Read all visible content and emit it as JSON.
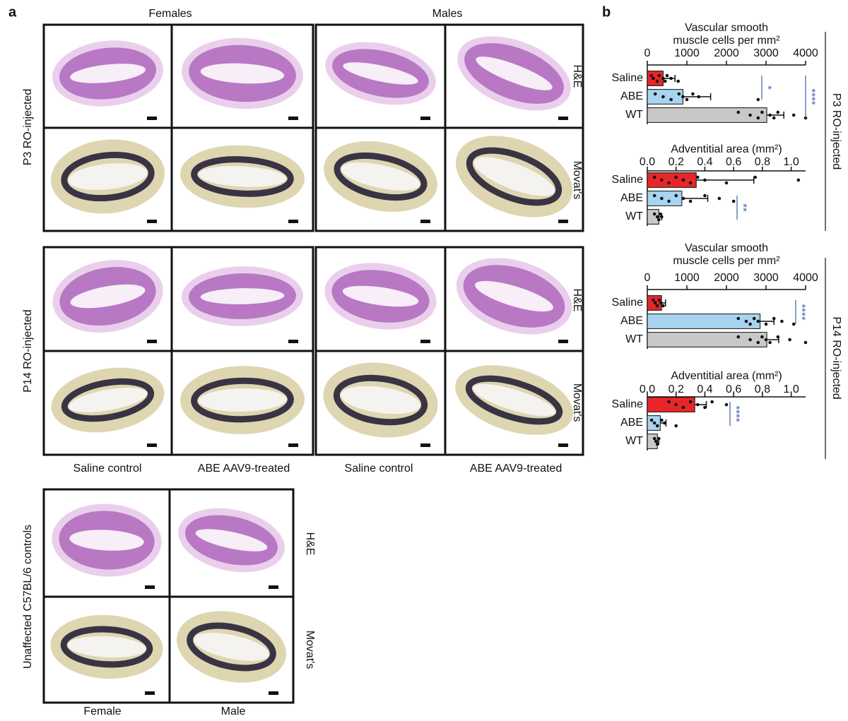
{
  "panel_a": {
    "label": "a",
    "sexes": [
      "Females",
      "Males"
    ],
    "groups": [
      "P3 RO-injected",
      "P14 RO-injected"
    ],
    "stains": [
      "H&E",
      "Movat's"
    ],
    "conditions": [
      "Saline control",
      "ABE AAV9-treated"
    ],
    "control": {
      "title": "Unaffected C57BL/6 controls",
      "stains": [
        "H&E",
        "Movat's"
      ],
      "columns": [
        "Female",
        "Male"
      ]
    }
  },
  "panel_b": {
    "label": "b",
    "groups": [
      {
        "title": "P3 RO-injected",
        "charts": [
          {
            "type": "bar",
            "title": [
              "Vascular smooth",
              "muscle cells per mm²"
            ],
            "categories": [
              "Saline",
              "ABE",
              "WT"
            ],
            "colors": [
              "#e8262a",
              "#a8d4f0",
              "#c8c8c8"
            ],
            "values": [
              400,
              900,
              3020
            ],
            "errors": [
              300,
              700,
              430
            ],
            "points": [
              [
                100,
                150,
                250,
                300,
                400,
                450,
                500,
                600,
                780
              ],
              [
                200,
                400,
                600,
                800,
                900,
                1000,
                1150,
                1300,
                2800
              ],
              [
                2300,
                2600,
                2800,
                2900,
                3100,
                3200,
                3300,
                3700,
                4000
              ]
            ],
            "xlim": [
              0,
              4000
            ],
            "xticks": [
              0,
              1000,
              2000,
              3000,
              4000
            ],
            "significance": [
              "*",
              "****"
            ]
          },
          {
            "type": "bar",
            "title": [
              "Adventitial area (mm²)"
            ],
            "categories": [
              "Saline",
              "ABE",
              "WT"
            ],
            "colors": [
              "#e8262a",
              "#a8d4f0",
              "#c8c8c8"
            ],
            "values": [
              0.34,
              0.24,
              0.08
            ],
            "errors": [
              0.4,
              0.18,
              0.02
            ],
            "points": [
              [
                0.05,
                0.1,
                0.15,
                0.2,
                0.25,
                0.3,
                0.35,
                0.4,
                0.55,
                0.75,
                1.05
              ],
              [
                0.05,
                0.1,
                0.15,
                0.2,
                0.25,
                0.3,
                0.4,
                0.5,
                0.6
              ],
              [
                0.05,
                0.07,
                0.08,
                0.09,
                0.1
              ]
            ],
            "xlim": [
              0,
              1.1
            ],
            "xticks": [
              {
                "value": 0,
                "label": "0.0"
              },
              0.2,
              0.4,
              0.6,
              0.8,
              {
                "value": 1,
                "label": "1.0"
              }
            ],
            "significance": [
              "**"
            ]
          }
        ]
      },
      {
        "title": "P14 RO-injected",
        "charts": [
          {
            "type": "bar",
            "title": [
              "Vascular smooth",
              "muscle cells per mm²"
            ],
            "categories": [
              "Saline",
              "ABE",
              "WT"
            ],
            "colors": [
              "#e8262a",
              "#a8d4f0",
              "#c8c8c8"
            ],
            "values": [
              360,
              2850,
              3020
            ],
            "errors": [
              100,
              350,
              300
            ],
            "points": [
              [
                150,
                200,
                250,
                300,
                350,
                400
              ],
              [
                2300,
                2500,
                2600,
                2700,
                2800,
                3000,
                3200,
                3400,
                3700
              ],
              [
                2300,
                2600,
                2800,
                2900,
                3000,
                3100,
                3300,
                3600,
                4000
              ]
            ],
            "xlim": [
              0,
              4000
            ],
            "xticks": [
              0,
              1000,
              2000,
              3000,
              4000
            ],
            "significance": [
              "****"
            ]
          },
          {
            "type": "bar",
            "title": [
              "Adventitial area (mm²)"
            ],
            "categories": [
              "Saline",
              "ABE",
              "WT"
            ],
            "colors": [
              "#e8262a",
              "#a8d4f0",
              "#c8c8c8"
            ],
            "values": [
              0.33,
              0.09,
              0.07
            ],
            "errors": [
              0.08,
              0.04,
              0.01
            ],
            "points": [
              [
                0.15,
                0.2,
                0.25,
                0.3,
                0.35,
                0.4,
                0.45,
                0.55
              ],
              [
                0.03,
                0.05,
                0.07,
                0.1,
                0.12,
                0.2
              ],
              [
                0.05,
                0.06,
                0.07,
                0.08
              ]
            ],
            "xlim": [
              0,
              1.1
            ],
            "xticks": [
              {
                "value": 0,
                "label": "0.0"
              },
              0.2,
              0.4,
              0.6,
              0.8,
              {
                "value": 1,
                "label": "1.0"
              }
            ],
            "significance": [
              "****"
            ]
          }
        ]
      }
    ]
  }
}
